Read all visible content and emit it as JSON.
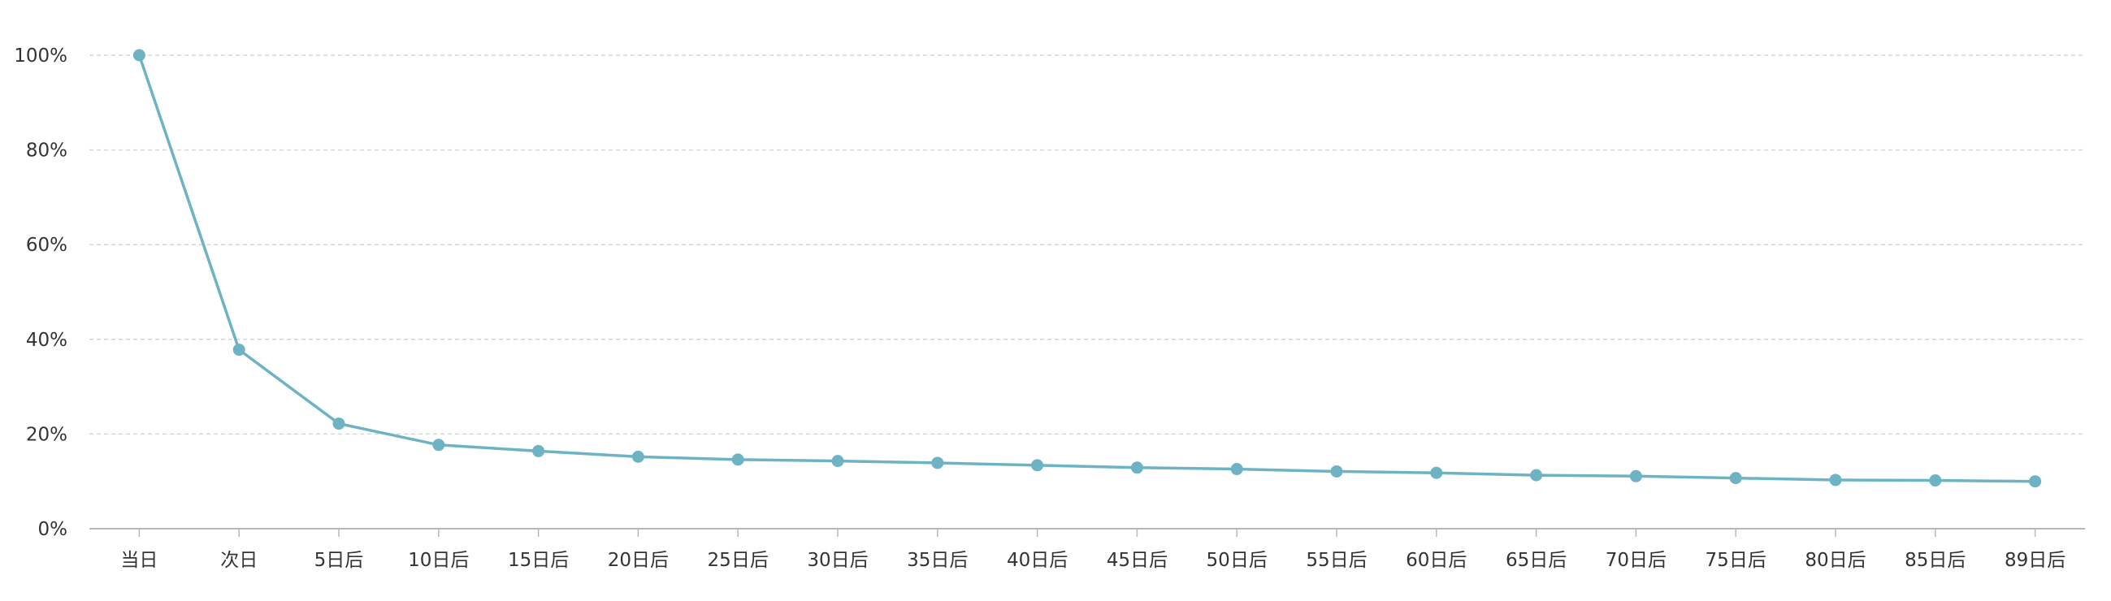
{
  "chart_data": {
    "type": "line",
    "title": "",
    "xlabel": "",
    "ylabel": "",
    "categories": [
      "当日",
      "次日",
      "5日后",
      "10日后",
      "15日后",
      "20日后",
      "25日后",
      "30日后",
      "35日后",
      "40日后",
      "45日后",
      "50日后",
      "55日后",
      "60日后",
      "65日后",
      "70日后",
      "75日后",
      "80日后",
      "85日后",
      "89日后"
    ],
    "y_ticks": [
      "0%",
      "20%",
      "40%",
      "60%",
      "80%",
      "100%"
    ],
    "ylim": [
      0,
      100
    ],
    "y_unit": "%",
    "grid": true,
    "series": [
      {
        "color": "#6db3c4",
        "values": [
          100,
          37.8,
          22.2,
          17.7,
          16.4,
          15.2,
          14.6,
          14.3,
          13.9,
          13.4,
          12.9,
          12.6,
          12.1,
          11.8,
          11.3,
          11.1,
          10.7,
          10.3,
          10.2,
          10.0
        ]
      }
    ]
  }
}
